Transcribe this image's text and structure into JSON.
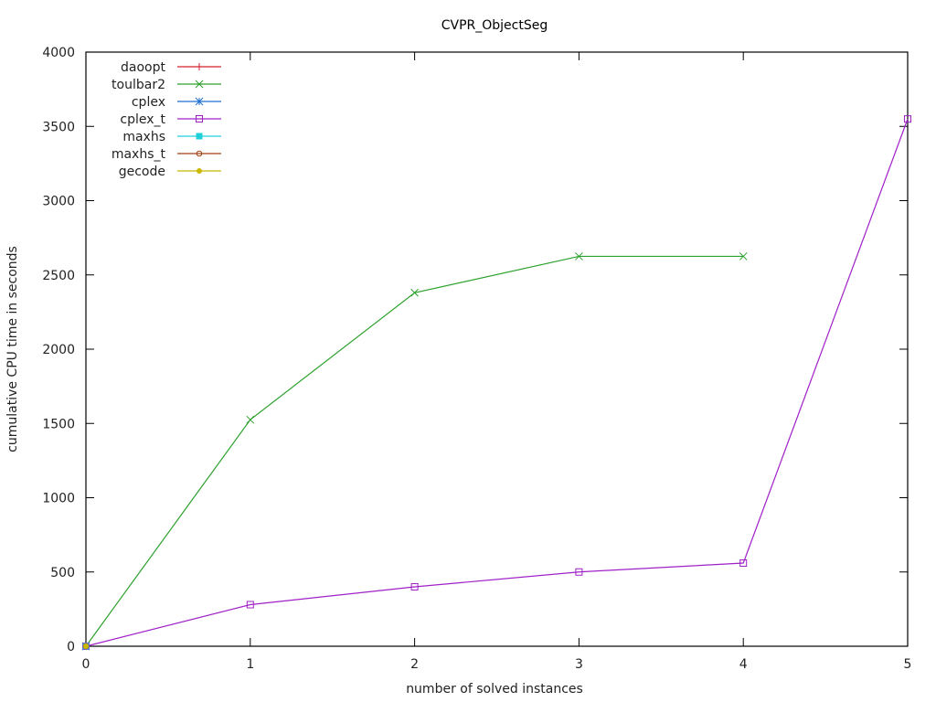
{
  "chart_data": {
    "type": "line",
    "title": "CVPR_ObjectSeg",
    "xlabel": "number of solved instances",
    "ylabel": "cumulative CPU time in seconds",
    "xlim": [
      0,
      5
    ],
    "ylim": [
      0,
      4000
    ],
    "xticks": [
      0,
      1,
      2,
      3,
      4,
      5
    ],
    "yticks": [
      0,
      500,
      1000,
      1500,
      2000,
      2500,
      3000,
      3500,
      4000
    ],
    "grid": false,
    "legend_position": "top-left",
    "series": [
      {
        "name": "daoopt",
        "color": "#d0202a",
        "marker": "plus",
        "x": [
          0
        ],
        "y": [
          0
        ]
      },
      {
        "name": "toulbar2",
        "color": "#2ca02c",
        "marker": "cross",
        "x": [
          0,
          1,
          2,
          3,
          4
        ],
        "y": [
          0,
          1525,
          2380,
          2625,
          2625
        ]
      },
      {
        "name": "cplex",
        "color": "#1f6fd0",
        "marker": "star",
        "x": [
          0
        ],
        "y": [
          0
        ]
      },
      {
        "name": "cplex_t",
        "color": "#a020c8",
        "marker": "open-square",
        "x": [
          0,
          1,
          2,
          3,
          4,
          5
        ],
        "y": [
          0,
          280,
          400,
          500,
          560,
          3550
        ]
      },
      {
        "name": "maxhs",
        "color": "#20d0d8",
        "marker": "filled-square",
        "x": [
          0
        ],
        "y": [
          0
        ]
      },
      {
        "name": "maxhs_t",
        "color": "#a04010",
        "marker": "open-circle",
        "x": [
          0
        ],
        "y": [
          0
        ]
      },
      {
        "name": "gecode",
        "color": "#c8b800",
        "marker": "filled-circle",
        "x": [
          0
        ],
        "y": [
          0
        ]
      }
    ]
  }
}
